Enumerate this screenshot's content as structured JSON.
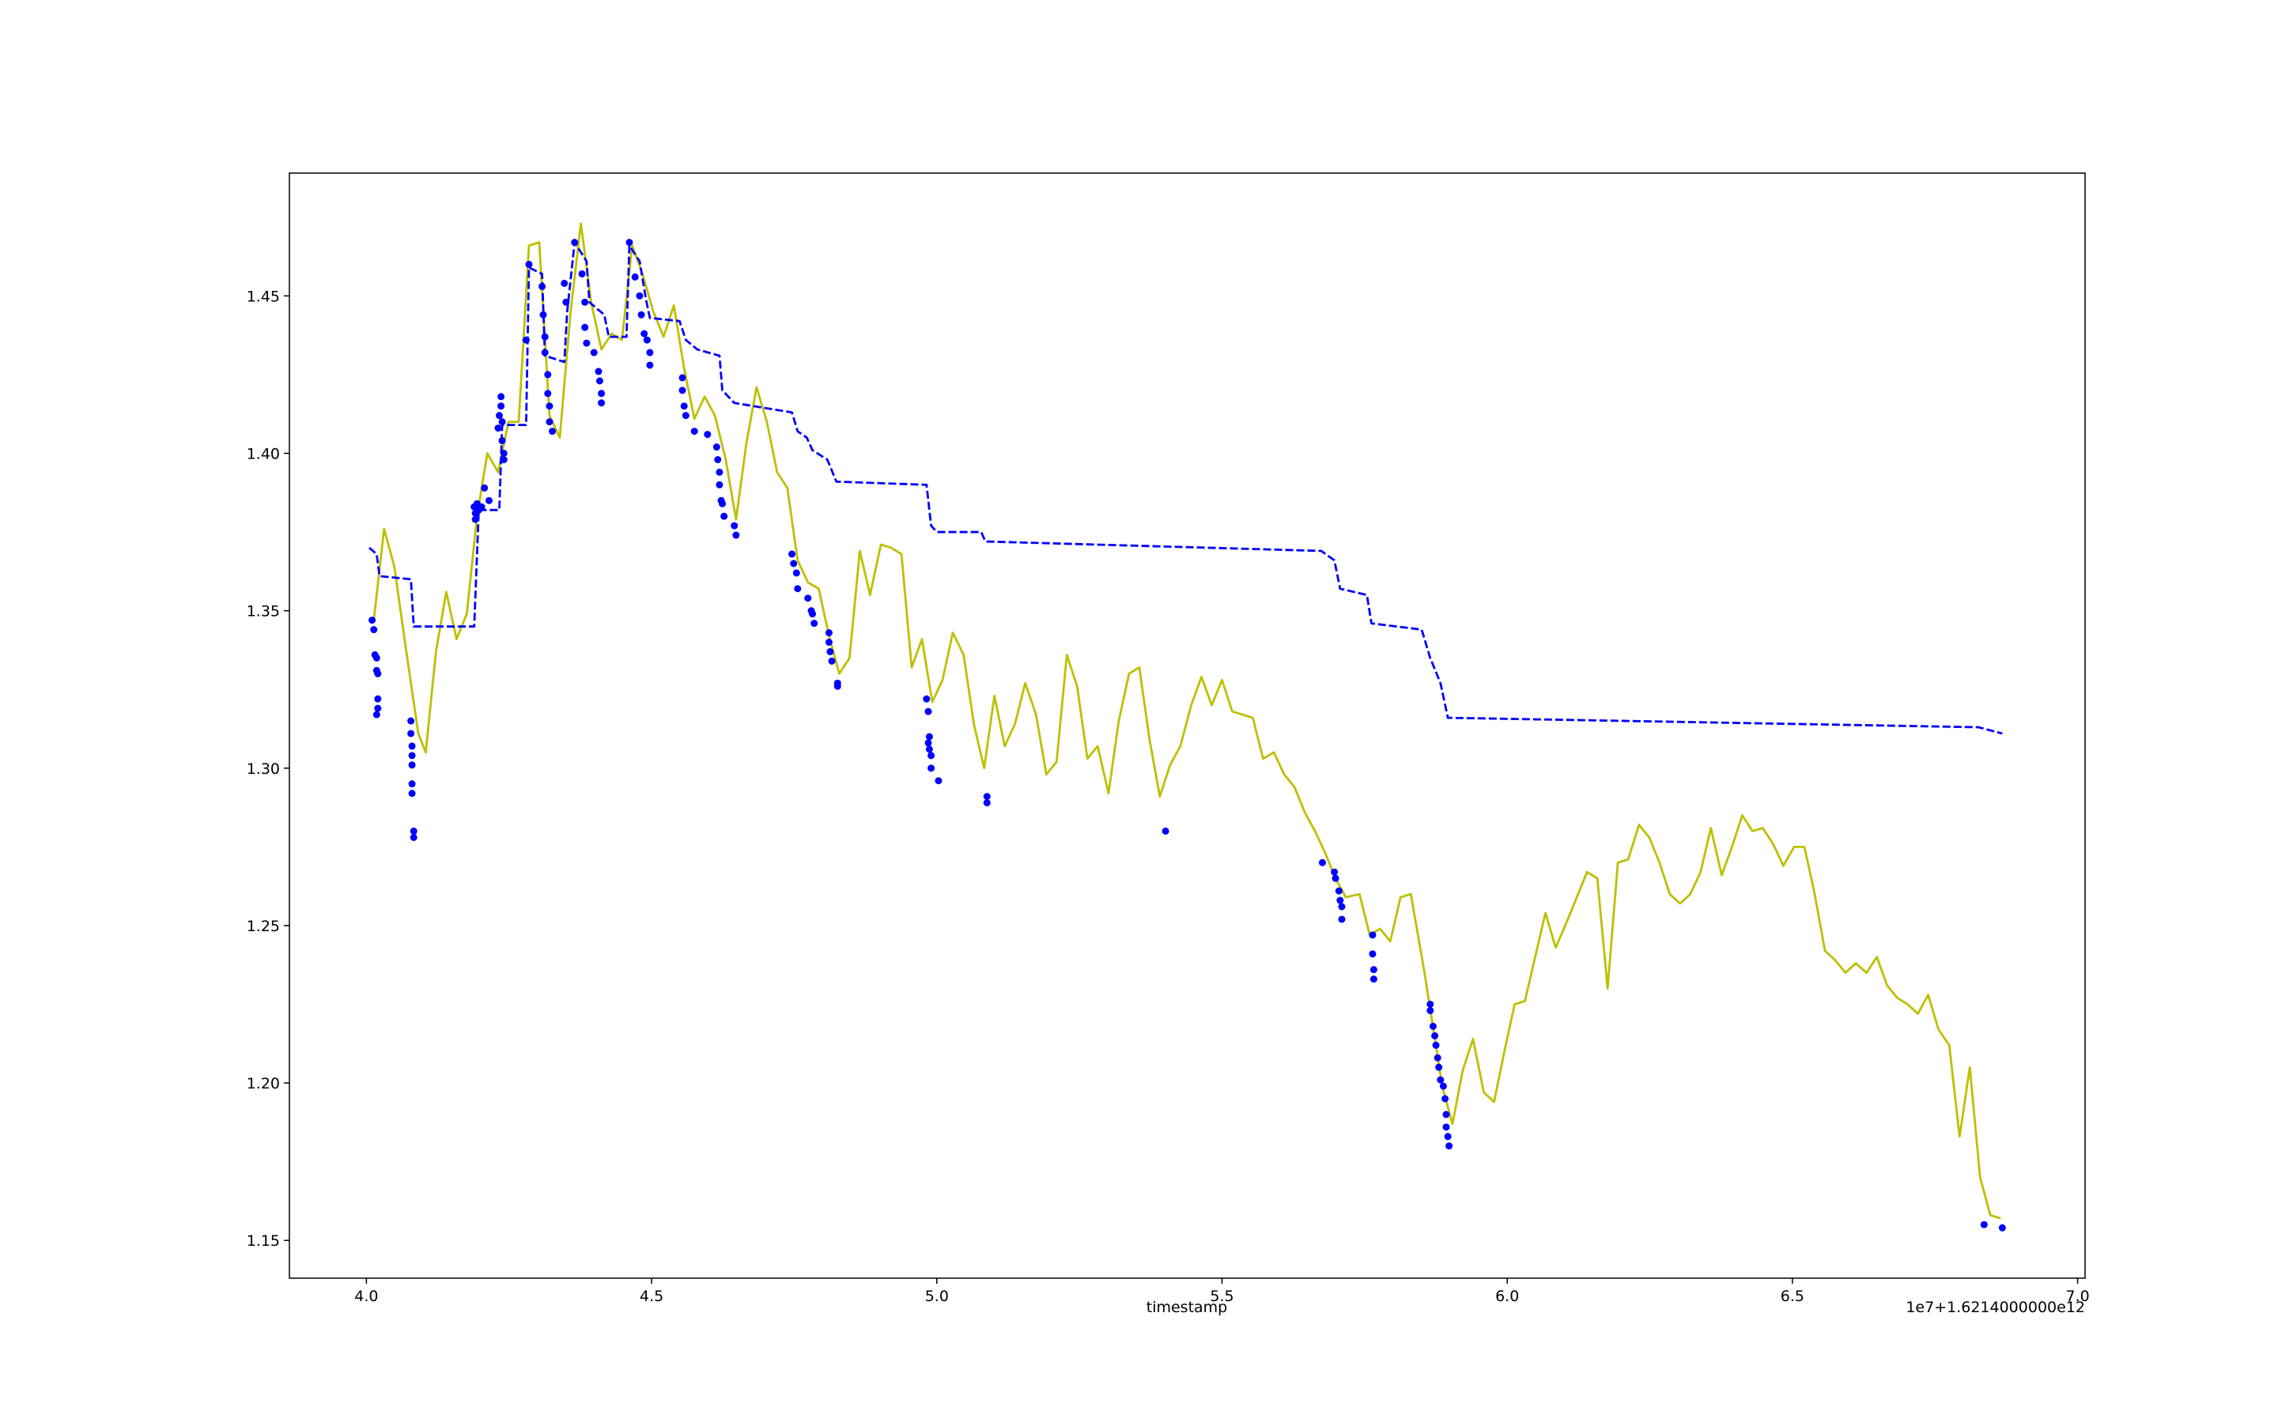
{
  "chart_data": {
    "type": "line",
    "x_label": "timestamp",
    "offset_text": "1e7+1.6214000000e12",
    "xlim": [
      3.865,
      7.013
    ],
    "ylim": [
      1.138,
      1.489
    ],
    "xticks": [
      {
        "value": 4,
        "label": "4.0"
      },
      4.5,
      {
        "value": 5,
        "label": "5.0"
      },
      5.5,
      {
        "value": 6,
        "label": "6.0"
      },
      6.5,
      {
        "value": 7,
        "label": "7.0"
      }
    ],
    "yticks": [
      1.15,
      {
        "value": 1.2,
        "label": "1.20"
      },
      1.25,
      {
        "value": 1.3,
        "label": "1.30"
      },
      1.35,
      {
        "value": 1.4,
        "label": "1.40"
      },
      1.45
    ],
    "grid": false,
    "series": [
      {
        "style": "solid",
        "color": "#bfbf00",
        "x": [
          4.013,
          4.031,
          4.049,
          4.07,
          4.091,
          4.104,
          4.122,
          4.14,
          4.158,
          4.176,
          4.194,
          4.212,
          4.231,
          4.249,
          4.267,
          4.285,
          4.303,
          4.321,
          4.339,
          4.358,
          4.376,
          4.394,
          4.412,
          4.43,
          4.448,
          4.466,
          4.484,
          4.503,
          4.521,
          4.539,
          4.557,
          4.575,
          4.593,
          4.611,
          4.63,
          4.648,
          4.666,
          4.684,
          4.702,
          4.72,
          4.738,
          4.756,
          4.774,
          4.793,
          4.811,
          4.829,
          4.847,
          4.865,
          4.883,
          4.902,
          4.92,
          4.938,
          4.956,
          4.974,
          4.992,
          5.01,
          5.028,
          5.047,
          5.065,
          5.083,
          5.101,
          5.119,
          5.137,
          5.155,
          5.174,
          5.192,
          5.21,
          5.228,
          5.246,
          5.264,
          5.282,
          5.301,
          5.319,
          5.337,
          5.355,
          5.373,
          5.391,
          5.409,
          5.427,
          5.446,
          5.464,
          5.482,
          5.5,
          5.518,
          5.554,
          5.572,
          5.591,
          5.609,
          5.627,
          5.645,
          5.663,
          5.681,
          5.699,
          5.717,
          5.741,
          5.759,
          5.777,
          5.795,
          5.813,
          5.831,
          5.855,
          5.868,
          5.886,
          5.904,
          5.922,
          5.94,
          5.959,
          5.977,
          5.995,
          6.013,
          6.031,
          6.049,
          6.067,
          6.085,
          6.104,
          6.122,
          6.14,
          6.158,
          6.176,
          6.194,
          6.212,
          6.231,
          6.249,
          6.267,
          6.285,
          6.303,
          6.321,
          6.339,
          6.357,
          6.376,
          6.394,
          6.412,
          6.43,
          6.448,
          6.466,
          6.484,
          6.503,
          6.521,
          6.539,
          6.557,
          6.575,
          6.593,
          6.611,
          6.63,
          6.648,
          6.666,
          6.684,
          6.702,
          6.72,
          6.738,
          6.756,
          6.775,
          6.793,
          6.811,
          6.829,
          6.847,
          6.865
        ],
        "values": [
          1.347,
          1.376,
          1.364,
          1.337,
          1.311,
          1.305,
          1.337,
          1.356,
          1.341,
          1.349,
          1.38,
          1.4,
          1.394,
          1.41,
          1.41,
          1.466,
          1.467,
          1.412,
          1.405,
          1.445,
          1.473,
          1.448,
          1.433,
          1.438,
          1.436,
          1.466,
          1.457,
          1.445,
          1.437,
          1.447,
          1.427,
          1.411,
          1.418,
          1.412,
          1.398,
          1.379,
          1.403,
          1.421,
          1.41,
          1.394,
          1.389,
          1.366,
          1.359,
          1.357,
          1.342,
          1.33,
          1.335,
          1.369,
          1.355,
          1.371,
          1.37,
          1.368,
          1.332,
          1.341,
          1.321,
          1.328,
          1.343,
          1.336,
          1.314,
          1.3,
          1.323,
          1.307,
          1.314,
          1.327,
          1.317,
          1.298,
          1.302,
          1.336,
          1.326,
          1.303,
          1.307,
          1.292,
          1.315,
          1.33,
          1.332,
          1.309,
          1.291,
          1.301,
          1.307,
          1.32,
          1.329,
          1.32,
          1.328,
          1.318,
          1.316,
          1.303,
          1.305,
          1.298,
          1.294,
          1.286,
          1.28,
          1.273,
          1.265,
          1.259,
          1.26,
          1.247,
          1.249,
          1.245,
          1.259,
          1.26,
          1.235,
          1.22,
          1.199,
          1.187,
          1.204,
          1.214,
          1.197,
          1.194,
          1.21,
          1.225,
          1.226,
          1.24,
          1.254,
          1.243,
          1.251,
          1.259,
          1.267,
          1.265,
          1.23,
          1.27,
          1.271,
          1.282,
          1.278,
          1.27,
          1.26,
          1.257,
          1.26,
          1.267,
          1.281,
          1.266,
          1.275,
          1.285,
          1.28,
          1.281,
          1.276,
          1.269,
          1.275,
          1.275,
          1.26,
          1.242,
          1.239,
          1.235,
          1.238,
          1.235,
          1.24,
          1.231,
          1.227,
          1.225,
          1.222,
          1.228,
          1.217,
          1.212,
          1.183,
          1.205,
          1.17,
          1.158,
          1.157
        ]
      },
      {
        "style": "dashed",
        "color": "#0000ff",
        "x": [
          4.005,
          4.018,
          4.023,
          4.078,
          4.083,
          4.189,
          4.197,
          4.233,
          4.238,
          4.28,
          4.285,
          4.308,
          4.313,
          4.347,
          4.352,
          4.365,
          4.386,
          4.391,
          4.417,
          4.425,
          4.456,
          4.461,
          4.479,
          4.49,
          4.497,
          4.549,
          4.56,
          4.58,
          4.619,
          4.624,
          4.645,
          4.746,
          4.756,
          4.772,
          4.782,
          4.808,
          4.824,
          4.982,
          4.99,
          5.0,
          5.078,
          5.085,
          5.674,
          5.697,
          5.707,
          5.754,
          5.762,
          5.85,
          5.865,
          5.883,
          5.896,
          6.826,
          6.868
        ],
        "values": [
          1.37,
          1.368,
          1.361,
          1.36,
          1.345,
          1.345,
          1.382,
          1.382,
          1.409,
          1.409,
          1.459,
          1.457,
          1.431,
          1.429,
          1.445,
          1.467,
          1.461,
          1.448,
          1.444,
          1.437,
          1.437,
          1.466,
          1.461,
          1.449,
          1.443,
          1.442,
          1.436,
          1.433,
          1.431,
          1.42,
          1.416,
          1.413,
          1.407,
          1.405,
          1.401,
          1.398,
          1.391,
          1.39,
          1.377,
          1.375,
          1.375,
          1.372,
          1.369,
          1.366,
          1.357,
          1.355,
          1.346,
          1.344,
          1.335,
          1.327,
          1.316,
          1.313,
          1.311
        ]
      },
      {
        "style": "markers",
        "color": "#0000ff",
        "x": [
          4.01,
          4.013,
          4.015,
          4.018,
          4.018,
          4.02,
          4.02,
          4.02,
          4.018,
          4.078,
          4.078,
          4.08,
          4.08,
          4.08,
          4.08,
          4.08,
          4.083,
          4.083,
          4.189,
          4.191,
          4.191,
          4.194,
          4.197,
          4.202,
          4.207,
          4.215,
          4.231,
          4.233,
          4.236,
          4.236,
          4.238,
          4.238,
          4.241,
          4.241,
          4.28,
          4.285,
          4.308,
          4.31,
          4.313,
          4.313,
          4.318,
          4.318,
          4.321,
          4.321,
          4.326,
          4.347,
          4.35,
          4.365,
          4.378,
          4.383,
          4.383,
          4.386,
          4.399,
          4.407,
          4.409,
          4.412,
          4.412,
          4.461,
          4.471,
          4.479,
          4.482,
          4.487,
          4.492,
          4.497,
          4.497,
          4.554,
          4.554,
          4.557,
          4.56,
          4.575,
          4.598,
          4.614,
          4.616,
          4.619,
          4.619,
          4.622,
          4.624,
          4.627,
          4.645,
          4.648,
          4.746,
          4.749,
          4.754,
          4.756,
          4.774,
          4.78,
          4.782,
          4.785,
          4.811,
          4.811,
          4.813,
          4.816,
          4.826,
          4.826,
          4.982,
          4.985,
          4.987,
          4.985,
          4.987,
          4.99,
          4.99,
          5.003,
          5.088,
          5.088,
          5.401,
          5.676,
          5.697,
          5.699,
          5.705,
          5.707,
          5.71,
          5.71,
          5.764,
          5.764,
          5.766,
          5.766,
          5.865,
          5.865,
          5.87,
          5.873,
          5.875,
          5.878,
          5.88,
          5.883,
          5.888,
          5.891,
          5.893,
          5.893,
          5.896,
          5.898,
          6.836,
          6.868
        ],
        "values": [
          1.347,
          1.344,
          1.336,
          1.335,
          1.331,
          1.33,
          1.322,
          1.319,
          1.317,
          1.315,
          1.311,
          1.307,
          1.304,
          1.301,
          1.295,
          1.292,
          1.28,
          1.278,
          1.383,
          1.381,
          1.379,
          1.384,
          1.382,
          1.383,
          1.389,
          1.385,
          1.408,
          1.412,
          1.418,
          1.415,
          1.41,
          1.404,
          1.4,
          1.398,
          1.436,
          1.46,
          1.453,
          1.444,
          1.437,
          1.432,
          1.425,
          1.419,
          1.415,
          1.41,
          1.407,
          1.454,
          1.448,
          1.467,
          1.457,
          1.448,
          1.44,
          1.435,
          1.432,
          1.426,
          1.423,
          1.419,
          1.416,
          1.467,
          1.456,
          1.45,
          1.444,
          1.438,
          1.436,
          1.432,
          1.428,
          1.424,
          1.42,
          1.415,
          1.412,
          1.407,
          1.406,
          1.402,
          1.398,
          1.394,
          1.39,
          1.385,
          1.384,
          1.38,
          1.377,
          1.374,
          1.368,
          1.365,
          1.362,
          1.357,
          1.354,
          1.35,
          1.349,
          1.346,
          1.343,
          1.34,
          1.337,
          1.334,
          1.327,
          1.326,
          1.322,
          1.318,
          1.31,
          1.308,
          1.306,
          1.304,
          1.3,
          1.296,
          1.291,
          1.289,
          1.28,
          1.27,
          1.267,
          1.265,
          1.261,
          1.258,
          1.256,
          1.252,
          1.247,
          1.241,
          1.236,
          1.233,
          1.225,
          1.223,
          1.218,
          1.215,
          1.212,
          1.208,
          1.205,
          1.201,
          1.199,
          1.195,
          1.19,
          1.186,
          1.183,
          1.18,
          1.155,
          1.154
        ]
      }
    ]
  }
}
